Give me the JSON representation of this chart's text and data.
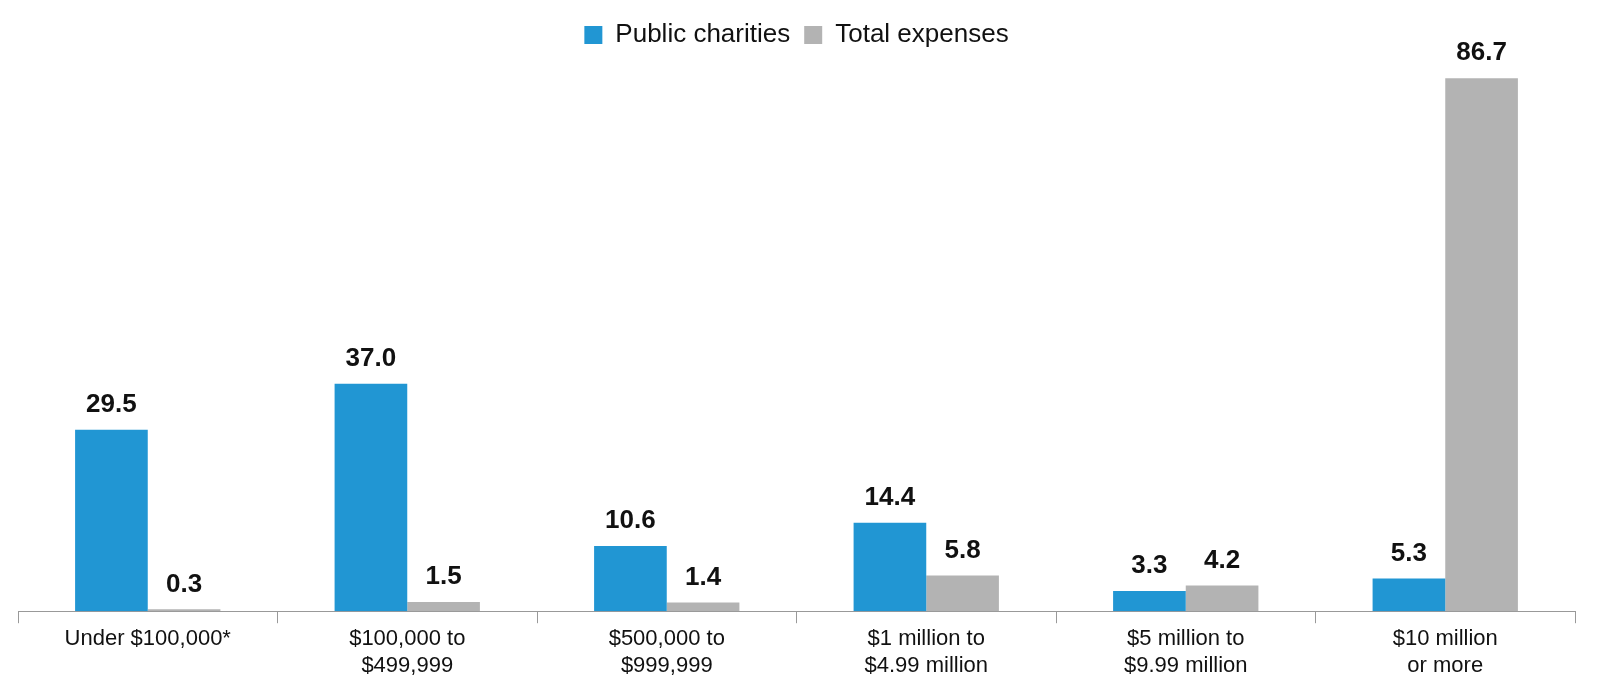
{
  "chart_data": {
    "type": "bar",
    "categories": [
      "Under $100,000*",
      "$100,000 to\n$499,999",
      "$500,000 to\n$999,999",
      "$1 million to\n$4.99 million",
      "$5 million to\n$9.99 million",
      "$10 million\nor more"
    ],
    "series": [
      {
        "name": "Public charities",
        "color": "#2196d3",
        "values": [
          29.5,
          37.0,
          10.6,
          14.4,
          3.3,
          5.3
        ],
        "value_labels": [
          "29.5",
          "37.0",
          "10.6",
          "14.4",
          "3.3",
          "5.3"
        ]
      },
      {
        "name": "Total expenses",
        "color": "#b3b3b3",
        "values": [
          0.3,
          1.5,
          1.4,
          5.8,
          4.2,
          86.7
        ],
        "value_labels": [
          "0.3",
          "1.5",
          "1.4",
          "5.8",
          "4.2",
          "86.7"
        ]
      }
    ],
    "legend": "top",
    "grid": false
  }
}
